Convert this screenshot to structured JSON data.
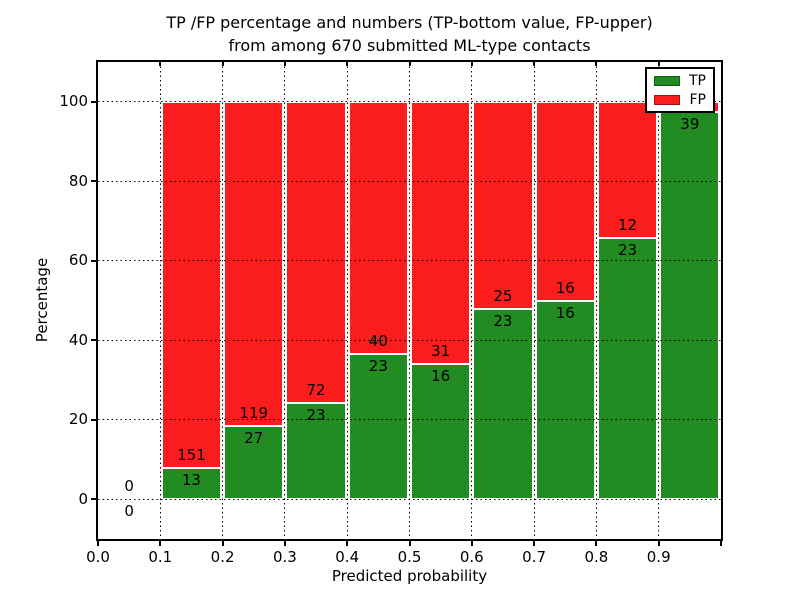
{
  "title": {
    "line1": "TP /FP percentage and numbers (TP-bottom value, FP-upper)",
    "line2": "from among 670 submitted ML-type contacts"
  },
  "legend": {
    "items": [
      {
        "label": "TP",
        "color": "#228b22"
      },
      {
        "label": "FP",
        "color": "#fb1d1d"
      }
    ]
  },
  "chart_data": {
    "type": "bar",
    "stacked": true,
    "title": "TP /FP percentage and numbers (TP-bottom value, FP-upper)\nfrom among 670 submitted ML-type contacts",
    "xlabel": "Predicted probability",
    "ylabel": "Percentage",
    "xlim": [
      0.0,
      1.0
    ],
    "ylim": [
      -10,
      110
    ],
    "x_ticks": [
      "0.0",
      "0.1",
      "0.2",
      "0.3",
      "0.4",
      "0.5",
      "0.6",
      "0.7",
      "0.8",
      "0.9"
    ],
    "y_ticks": [
      "0",
      "20",
      "40",
      "60",
      "80",
      "100"
    ],
    "grid": true,
    "grid_style": "dotted",
    "legend_position": "upper right",
    "colors": {
      "tp": "#228b22",
      "fp": "#fb1d1d",
      "bar_edge": "#ffffff"
    },
    "total_contacts": 670,
    "bins": [
      {
        "x_start": 0.0,
        "x_end": 0.1,
        "tp": 0,
        "fp": 0,
        "tp_pct": 0,
        "tp_label": "0",
        "fp_label": "0",
        "bar": false
      },
      {
        "x_start": 0.1,
        "x_end": 0.2,
        "tp": 13,
        "fp": 151,
        "tp_pct": 7.9,
        "tp_label": "13",
        "fp_label": "151",
        "bar": true
      },
      {
        "x_start": 0.2,
        "x_end": 0.3,
        "tp": 27,
        "fp": 119,
        "tp_pct": 18.5,
        "tp_label": "27",
        "fp_label": "119",
        "bar": true
      },
      {
        "x_start": 0.3,
        "x_end": 0.4,
        "tp": 23,
        "fp": 72,
        "tp_pct": 24.2,
        "tp_label": "23",
        "fp_label": "72",
        "bar": true
      },
      {
        "x_start": 0.4,
        "x_end": 0.5,
        "tp": 23,
        "fp": 40,
        "tp_pct": 36.5,
        "tp_label": "23",
        "fp_label": "40",
        "bar": true
      },
      {
        "x_start": 0.5,
        "x_end": 0.6,
        "tp": 16,
        "fp": 31,
        "tp_pct": 34.0,
        "tp_label": "16",
        "fp_label": "31",
        "bar": true
      },
      {
        "x_start": 0.6,
        "x_end": 0.7,
        "tp": 23,
        "fp": 25,
        "tp_pct": 47.9,
        "tp_label": "23",
        "fp_label": "25",
        "bar": true
      },
      {
        "x_start": 0.7,
        "x_end": 0.8,
        "tp": 16,
        "fp": 16,
        "tp_pct": 50.0,
        "tp_label": "16",
        "fp_label": "16",
        "bar": true
      },
      {
        "x_start": 0.8,
        "x_end": 0.9,
        "tp": 23,
        "fp": 12,
        "tp_pct": 65.7,
        "tp_label": "23",
        "fp_label": "12",
        "bar": true
      },
      {
        "x_start": 0.9,
        "x_end": 1.0,
        "tp": 39,
        "fp": 1,
        "tp_pct": 97.5,
        "tp_label": "39",
        "fp_label": "",
        "bar": true
      }
    ]
  }
}
